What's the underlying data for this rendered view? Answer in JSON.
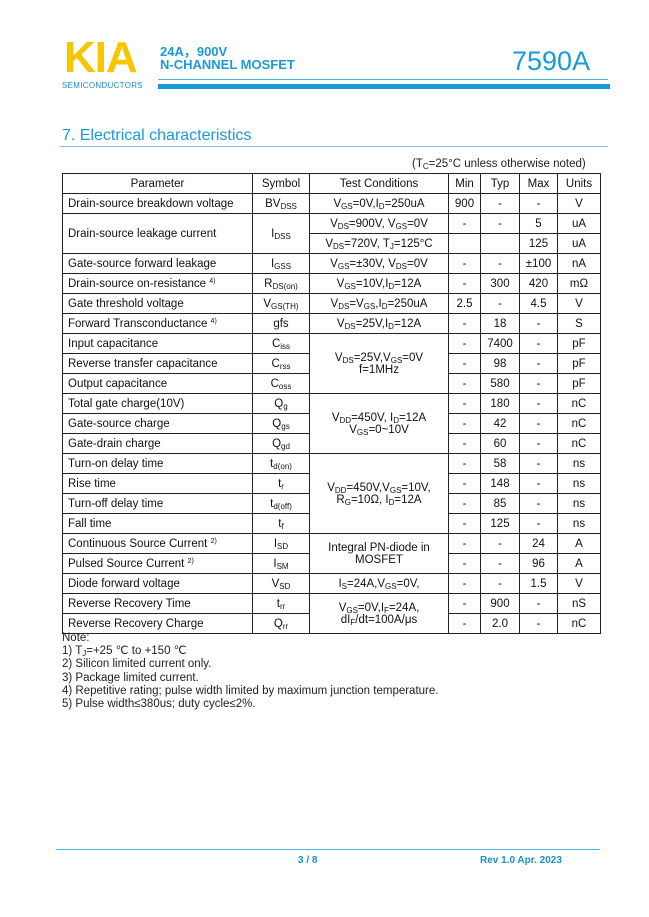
{
  "header": {
    "logo": "KIA",
    "logo_sub": "SEMICONDUCTORS",
    "line1": "24A，900V",
    "line2": "N-CHANNEL MOSFET",
    "part": "7590A",
    "colors": {
      "logo": "#f7c600",
      "accent": "#1a9ad6"
    }
  },
  "section": {
    "title": "7.  Electrical characteristics",
    "condition_note": "(T_{C}=25°C unless otherwise noted)"
  },
  "table": {
    "headers": [
      "Parameter",
      "Symbol",
      "Test Conditions",
      "Min",
      "Typ",
      "Max",
      "Units"
    ],
    "rows": [
      {
        "param": "Drain-source breakdown voltage",
        "sym": "BV_{DSS}",
        "cond": "V_{GS}=0V,I_{D}=250uA",
        "min": "900",
        "typ": "-",
        "max": "-",
        "unit": "V"
      },
      {
        "param": "Drain-source leakage current",
        "param_span": 2,
        "sym": "I_{DSS}",
        "sym_span": 2,
        "cond": "V_{DS}=900V, V_{GS}=0V",
        "min": "-",
        "typ": "-",
        "max": "5",
        "unit": "uA"
      },
      {
        "cond": "V_{DS}=720V, T_{J}=125°C",
        "min": "",
        "typ": "",
        "max": "125",
        "unit": "uA"
      },
      {
        "param": "Gate-source forward leakage",
        "sym": "I_{GSS}",
        "cond": "V_{GS}=±30V, V_{DS}=0V",
        "min": "-",
        "typ": "-",
        "max": "±100",
        "unit": "nA"
      },
      {
        "param": "Drain-source on-resistance ^{4)}",
        "sym": "R_{DS(on)}",
        "cond": "V_{GS}=10V,I_{D}=12A",
        "min": "-",
        "typ": "300",
        "max": "420",
        "unit": "mΩ"
      },
      {
        "param": "Gate threshold voltage",
        "sym": "V_{GS(TH)}",
        "cond": "V_{DS}=V_{GS},I_{D}=250uA",
        "min": "2.5",
        "typ": "-",
        "max": "4.5",
        "unit": "V"
      },
      {
        "param": "Forward Transconductance ^{4)}",
        "sym": "gfs",
        "cond": "V_{DS}=25V,I_{D}=12A",
        "min": "-",
        "typ": "18",
        "max": "-",
        "unit": "S"
      },
      {
        "param": "Input capacitance",
        "sym": "C_{iss}",
        "cond": "V_{DS}=25V,V_{GS}=0V\nf=1MHz",
        "cond_span": 3,
        "min": "-",
        "typ": "7400",
        "max": "-",
        "unit": "pF"
      },
      {
        "param": "Reverse transfer capacitance",
        "sym": "C_{rss}",
        "min": "-",
        "typ": "98",
        "max": "-",
        "unit": "pF"
      },
      {
        "param": "Output capacitance",
        "sym": "C_{oss}",
        "min": "-",
        "typ": "580",
        "max": "-",
        "unit": "pF"
      },
      {
        "param": "Total gate charge(10V)",
        "sym": "Q_{g}",
        "cond": "V_{DD}=450V, I_{D}=12A\nV_{GS}=0~10V",
        "cond_span": 3,
        "min": "-",
        "typ": "180",
        "max": "-",
        "unit": "nC"
      },
      {
        "param": "Gate-source charge",
        "sym": "Q_{gs}",
        "min": "-",
        "typ": "42",
        "max": "-",
        "unit": "nC"
      },
      {
        "param": "Gate-drain charge",
        "sym": "Q_{gd}",
        "min": "-",
        "typ": "60",
        "max": "-",
        "unit": "nC"
      },
      {
        "param": "Turn-on delay time",
        "sym": "t_{d(on)}",
        "cond": "V_{DD}=450V,V_{GS}=10V,\nR_{G}=10Ω, I_{D}=12A",
        "cond_span": 4,
        "min": "-",
        "typ": "58",
        "max": "-",
        "unit": "ns"
      },
      {
        "param": "Rise time",
        "sym": "t_{r}",
        "min": "-",
        "typ": "148",
        "max": "-",
        "unit": "ns"
      },
      {
        "param": "Turn-off delay time",
        "sym": "t_{d(off)}",
        "min": "-",
        "typ": "85",
        "max": "-",
        "unit": "ns"
      },
      {
        "param": "Fall time",
        "sym": "t_{f}",
        "min": "-",
        "typ": "125",
        "max": "-",
        "unit": "ns"
      },
      {
        "param": "Continuous Source Current ^{2)}",
        "sym": "I_{SD}",
        "cond": "Integral PN-diode in\nMOSFET",
        "cond_span": 2,
        "min": "-",
        "typ": "-",
        "max": "24",
        "unit": "A"
      },
      {
        "param": "Pulsed Source Current ^{2)}",
        "sym": "I_{SM}",
        "min": "-",
        "typ": "-",
        "max": "96",
        "unit": "A"
      },
      {
        "param": "Diode forward voltage",
        "sym": "V_{SD}",
        "cond": "I_{S}=24A,V_{GS}=0V,",
        "min": "-",
        "typ": "-",
        "max": "1.5",
        "unit": "V"
      },
      {
        "param": "Reverse Recovery Time",
        "sym": "t_{rr}",
        "cond": "V_{GS}=0V,I_{F}=24A,\ndI_{F}/dt=100A/μs",
        "cond_span": 2,
        "min": "-",
        "typ": "900",
        "max": "-",
        "unit": "nS"
      },
      {
        "param": "Reverse Recovery Charge",
        "sym": "Q_{rr}",
        "min": "-",
        "typ": "2.0",
        "max": "-",
        "unit": "nC"
      }
    ]
  },
  "notes": [
    "Note:",
    "1) T_{J}=+25 ℃ to +150 ℃",
    "2) Silicon limited current only.",
    "3) Package limited current.",
    "4) Repetitive rating; pulse width limited by maximum junction temperature.",
    "5) Pulse width≤380us; duty cycle≤2%."
  ],
  "footer": {
    "page": "3 / 8",
    "revision": "Rev 1.0 Apr. 2023"
  }
}
